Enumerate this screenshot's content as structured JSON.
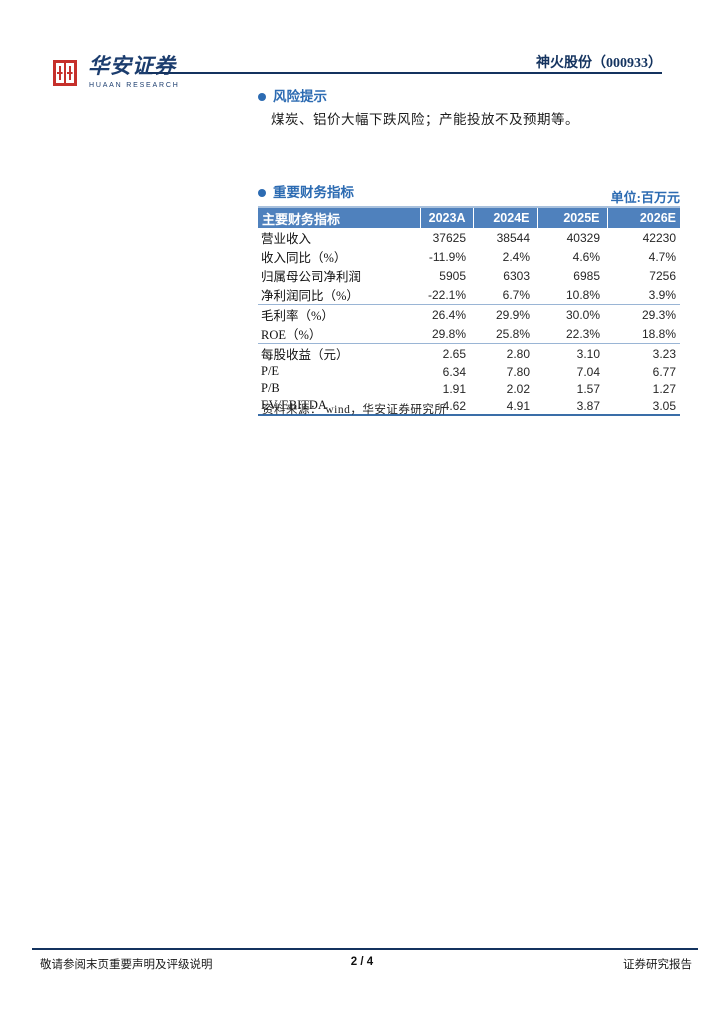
{
  "colors": {
    "accent_blue": "#2c6bb2",
    "table_header_bg": "#4f81bd",
    "table_light_line": "#9ab5d5",
    "table_bottom_line": "#3a6ea8",
    "navy": "#14335f",
    "seal_red": "#c6302b"
  },
  "header": {
    "logo": {
      "brand_cn": "华安证券",
      "brand_en": "HUAAN RESEARCH"
    },
    "stock_title": "神火股份（000933）"
  },
  "sections": {
    "risk": {
      "title": "风险提示",
      "body": "煤炭、铝价大幅下跌风险；产能投放不及预期等。"
    },
    "financial": {
      "title": "重要财务指标",
      "unit_label": "单位:百万元"
    }
  },
  "table": {
    "header": [
      "主要财务指标",
      "2023A",
      "2024E",
      "2025E",
      "2026E"
    ],
    "rows": [
      {
        "label": "营业收入",
        "values": [
          "37625",
          "38544",
          "40329",
          "42230"
        ],
        "group_end": false
      },
      {
        "label": "收入同比（%）",
        "values": [
          "-11.9%",
          "2.4%",
          "4.6%",
          "4.7%"
        ],
        "group_end": false
      },
      {
        "label": "归属母公司净利润",
        "values": [
          "5905",
          "6303",
          "6985",
          "7256"
        ],
        "group_end": false
      },
      {
        "label": "净利润同比（%）",
        "values": [
          "-22.1%",
          "6.7%",
          "10.8%",
          "3.9%"
        ],
        "group_end": true
      },
      {
        "label": "毛利率（%）",
        "values": [
          "26.4%",
          "29.9%",
          "30.0%",
          "29.3%"
        ],
        "group_end": false
      },
      {
        "label": "ROE（%）",
        "values": [
          "29.8%",
          "25.8%",
          "22.3%",
          "18.8%"
        ],
        "group_end": true
      },
      {
        "label": "每股收益（元）",
        "values": [
          "2.65",
          "2.80",
          "3.10",
          "3.23"
        ],
        "group_end": false
      },
      {
        "label": "P/E",
        "values": [
          "6.34",
          "7.80",
          "7.04",
          "6.77"
        ],
        "group_end": false
      },
      {
        "label": "P/B",
        "values": [
          "1.91",
          "2.02",
          "1.57",
          "1.27"
        ],
        "group_end": false
      },
      {
        "label": "EV/EBITDA",
        "values": [
          "4.62",
          "4.91",
          "3.87",
          "3.05"
        ],
        "group_end": false
      }
    ],
    "source": "资料来源：  wind，华安证券研究所"
  },
  "footer": {
    "left": "敬请参阅末页重要声明及评级说明",
    "center": "2 / 4",
    "right": "证券研究报告"
  }
}
